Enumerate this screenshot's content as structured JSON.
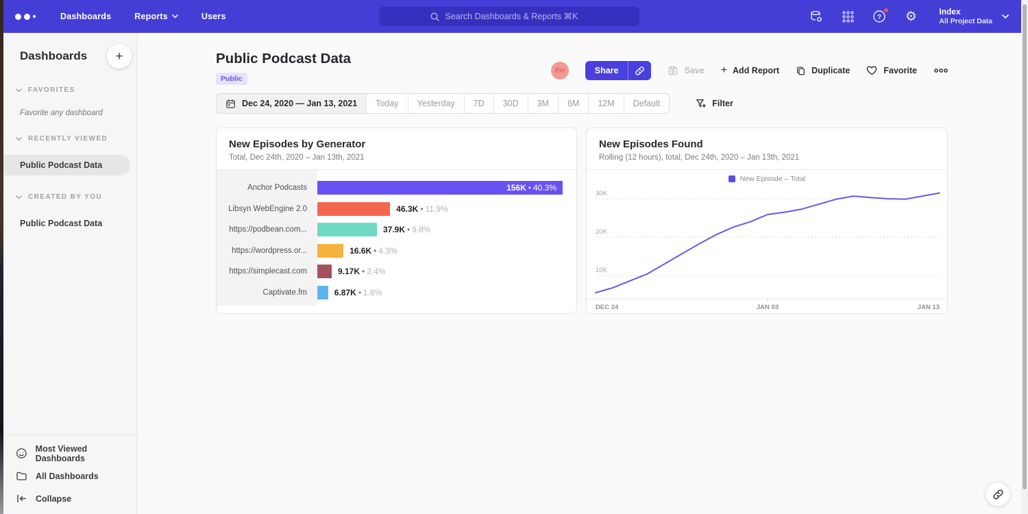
{
  "topnav": {
    "links": {
      "dashboards": "Dashboards",
      "reports": "Reports",
      "users": "Users"
    },
    "search": {
      "placeholder": "Search Dashboards & Reports ⌘K"
    },
    "project": {
      "name": "Index",
      "scope": "All Project Data"
    }
  },
  "sidebar": {
    "title": "Dashboards",
    "sections": [
      {
        "label": "FAVORITES",
        "empty_text": "Favorite any dashboard"
      },
      {
        "label": "RECENTLY VIEWED",
        "items": [
          {
            "label": "Public Podcast Data",
            "selected": true
          }
        ]
      },
      {
        "label": "CREATED BY YOU",
        "items": [
          {
            "label": "Public Podcast Data",
            "selected": false
          }
        ]
      }
    ],
    "footer": [
      {
        "label": "Most Viewed Dashboards",
        "icon": "smiley-icon"
      },
      {
        "label": "All Dashboards",
        "icon": "folder-icon"
      },
      {
        "label": "Collapse",
        "icon": "collapse-icon"
      }
    ]
  },
  "header": {
    "title": "Public Podcast Data",
    "badge": "Public",
    "avatar_initials": "RH",
    "actions": {
      "share": "Share",
      "save": "Save",
      "add_report": "Add Report",
      "duplicate": "Duplicate",
      "favorite": "Favorite"
    }
  },
  "date_controls": {
    "range": "Dec 24, 2020 — Jan 13, 2021",
    "presets": [
      "Today",
      "Yesterday",
      "7D",
      "30D",
      "3M",
      "6M",
      "12M",
      "Default"
    ],
    "filter": "Filter"
  },
  "chart_data": [
    {
      "type": "bar",
      "orientation": "horizontal",
      "title": "New Episodes by Generator",
      "subtitle": "Total, Dec 24th, 2020 – Jan 13th, 2021",
      "categories": [
        "Anchor Podcasts",
        "Libsyn WebEngine 2.0",
        "https://podbean.com...",
        "https://wordpress.or...",
        "https://simplecast.com",
        "Captivate.fm"
      ],
      "values": [
        156000,
        46300,
        37900,
        16600,
        9170,
        6870
      ],
      "value_labels": [
        "156K",
        "46.3K",
        "37.9K",
        "16.6K",
        "9.17K",
        "6.87K"
      ],
      "percent_labels": [
        "40.3%",
        "11.9%",
        "9.8%",
        "4.3%",
        "2.4%",
        "1.8%"
      ],
      "colors": [
        "#6952f4",
        "#f4674e",
        "#6edac6",
        "#f3b33d",
        "#a4505f",
        "#5fb5ea"
      ],
      "xlim": [
        0,
        156000
      ]
    },
    {
      "type": "line",
      "title": "New Episodes Found",
      "subtitle": "Rolling (12 hours), total, Dec 24th, 2020 – Jan 13th, 2021",
      "legend": [
        {
          "name": "New Episode – Total",
          "color": "#5b4ee4"
        }
      ],
      "x": [
        "Dec 24",
        "Dec 25",
        "Dec 26",
        "Dec 27",
        "Dec 28",
        "Dec 29",
        "Dec 30",
        "Dec 31",
        "Jan 1",
        "Jan 2",
        "Jan 3",
        "Jan 4",
        "Jan 5",
        "Jan 6",
        "Jan 7",
        "Jan 8",
        "Jan 9",
        "Jan 10",
        "Jan 11",
        "Jan 12",
        "Jan 13"
      ],
      "values": [
        5500,
        6800,
        8600,
        10400,
        13000,
        15600,
        18200,
        20600,
        22600,
        24000,
        25900,
        26500,
        27300,
        28600,
        29900,
        30700,
        30300,
        30000,
        29900,
        30700,
        31500
      ],
      "x_ticks": [
        "DEC 24",
        "JAN 03",
        "JAN 13"
      ],
      "y_ticks": [
        "10K",
        "20K",
        "30K"
      ],
      "ylim": [
        0,
        33000
      ],
      "grid": "dotted-horizontal",
      "line_color": "#6459ea",
      "legend_position": "top-center"
    }
  ]
}
